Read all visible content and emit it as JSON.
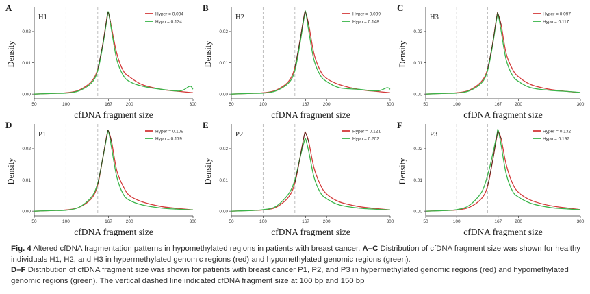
{
  "figure": {
    "caption": {
      "fig_label": "Fig. 4",
      "title": "Altered cfDNA fragmentation patterns in hypomethylated regions in patients with breast cancer.",
      "label_ac": "A–C",
      "text_ac": "Distribution of cfDNA fragment size was shown for healthy individuals H1, H2, and H3 in hypermethylated genomic regions (red) and hypomethylated genomic regions (green).",
      "label_df": "D–F",
      "text_df": "Distribution of cfDNA fragment size was shown for patients with breast cancer P1, P2, and P3 in hypermethylated genomic regions (red) and hypomethylated genomic regions (green). The vertical dashed line indicated cfDNA fragment size at 100 bp and 150 bp"
    }
  },
  "colors": {
    "hyper": "#d33a3a",
    "hypo": "#3ab54a",
    "overlap": "#3a2418",
    "axis": "#333333",
    "dashed": "#b8b8b8"
  },
  "chart_data": [
    {
      "type": "line",
      "panel": "A",
      "sample": "H1",
      "xlabel": "cfDNA fragment size",
      "ylabel": "Density",
      "xticks": [
        "50",
        "100",
        "167",
        "200",
        "300"
      ],
      "yticks": [
        "0.00",
        "0.01",
        "0.02"
      ],
      "xlim": [
        50,
        300
      ],
      "ylim": [
        -0.0015,
        0.027
      ],
      "vlines": [
        100,
        150
      ],
      "legend": [
        "Hyper = 0.094",
        "Hypo = 0.134"
      ],
      "legend_position": "top-right",
      "series": [
        {
          "name": "Hyper",
          "color": "#d33a3a",
          "points": [
            [
              50,
              0
            ],
            [
              80,
              0.0002
            ],
            [
              100,
              0.0004
            ],
            [
              120,
              0.0012
            ],
            [
              140,
              0.004
            ],
            [
              150,
              0.008
            ],
            [
              158,
              0.016
            ],
            [
              165,
              0.025
            ],
            [
              167,
              0.0258
            ],
            [
              170,
              0.023
            ],
            [
              180,
              0.013
            ],
            [
              190,
              0.0075
            ],
            [
              200,
              0.0055
            ],
            [
              220,
              0.003
            ],
            [
              250,
              0.0015
            ],
            [
              280,
              0.0008
            ],
            [
              300,
              0.0004
            ]
          ]
        },
        {
          "name": "Hypo",
          "color": "#3ab54a",
          "points": [
            [
              50,
              0
            ],
            [
              80,
              0.0002
            ],
            [
              100,
              0.0003
            ],
            [
              120,
              0.001
            ],
            [
              140,
              0.0035
            ],
            [
              150,
              0.0075
            ],
            [
              158,
              0.0155
            ],
            [
              165,
              0.0245
            ],
            [
              167,
              0.026
            ],
            [
              172,
              0.02
            ],
            [
              180,
              0.011
            ],
            [
              190,
              0.006
            ],
            [
              200,
              0.004
            ],
            [
              220,
              0.0025
            ],
            [
              250,
              0.0015
            ],
            [
              280,
              0.001
            ],
            [
              295,
              0.0025
            ],
            [
              300,
              0.0015
            ]
          ]
        }
      ]
    },
    {
      "type": "line",
      "panel": "B",
      "sample": "H2",
      "xlabel": "cfDNA fragment size",
      "ylabel": "Density",
      "xticks": [
        "50",
        "100",
        "167",
        "200",
        "300"
      ],
      "yticks": [
        "0.00",
        "0.01",
        "0.02"
      ],
      "xlim": [
        50,
        300
      ],
      "ylim": [
        -0.0015,
        0.027
      ],
      "vlines": [
        100,
        150
      ],
      "legend": [
        "Hyper = 0.099",
        "Hypo = 0.148"
      ],
      "legend_position": "top-right",
      "series": [
        {
          "name": "Hyper",
          "color": "#d33a3a",
          "points": [
            [
              50,
              0
            ],
            [
              80,
              0.0002
            ],
            [
              100,
              0.0004
            ],
            [
              120,
              0.0012
            ],
            [
              140,
              0.004
            ],
            [
              150,
              0.0085
            ],
            [
              158,
              0.017
            ],
            [
              165,
              0.0255
            ],
            [
              167,
              0.026
            ],
            [
              172,
              0.022
            ],
            [
              180,
              0.013
            ],
            [
              190,
              0.0075
            ],
            [
              200,
              0.005
            ],
            [
              220,
              0.003
            ],
            [
              250,
              0.0015
            ],
            [
              280,
              0.0008
            ],
            [
              300,
              0.0004
            ]
          ]
        },
        {
          "name": "Hypo",
          "color": "#3ab54a",
          "points": [
            [
              50,
              0
            ],
            [
              80,
              0.0002
            ],
            [
              100,
              0.0003
            ],
            [
              120,
              0.001
            ],
            [
              140,
              0.0035
            ],
            [
              150,
              0.0075
            ],
            [
              158,
              0.016
            ],
            [
              165,
              0.025
            ],
            [
              167,
              0.0262
            ],
            [
              172,
              0.02
            ],
            [
              180,
              0.011
            ],
            [
              190,
              0.006
            ],
            [
              200,
              0.004
            ],
            [
              220,
              0.002
            ],
            [
              250,
              0.0015
            ],
            [
              280,
              0.001
            ],
            [
              295,
              0.002
            ],
            [
              300,
              0.0015
            ]
          ]
        }
      ]
    },
    {
      "type": "line",
      "panel": "C",
      "sample": "H3",
      "xlabel": "cfDNA fragment size",
      "ylabel": "Density",
      "xticks": [
        "50",
        "100",
        "167",
        "200",
        "300"
      ],
      "yticks": [
        "0.00",
        "0.01",
        "0.02"
      ],
      "xlim": [
        50,
        300
      ],
      "ylim": [
        -0.0015,
        0.027
      ],
      "vlines": [
        100,
        150
      ],
      "legend": [
        "Hyper = 0.097",
        "Hypo = 0.117"
      ],
      "legend_position": "top-right",
      "series": [
        {
          "name": "Hyper",
          "color": "#d33a3a",
          "points": [
            [
              50,
              0
            ],
            [
              80,
              0.0002
            ],
            [
              100,
              0.0004
            ],
            [
              120,
              0.0012
            ],
            [
              140,
              0.004
            ],
            [
              150,
              0.008
            ],
            [
              158,
              0.016
            ],
            [
              165,
              0.025
            ],
            [
              167,
              0.0255
            ],
            [
              172,
              0.022
            ],
            [
              180,
              0.013
            ],
            [
              190,
              0.008
            ],
            [
              200,
              0.0055
            ],
            [
              220,
              0.003
            ],
            [
              250,
              0.0015
            ],
            [
              280,
              0.0008
            ],
            [
              300,
              0.0004
            ]
          ]
        },
        {
          "name": "Hypo",
          "color": "#3ab54a",
          "points": [
            [
              50,
              0
            ],
            [
              80,
              0.0002
            ],
            [
              100,
              0.0003
            ],
            [
              120,
              0.001
            ],
            [
              140,
              0.0035
            ],
            [
              150,
              0.0075
            ],
            [
              158,
              0.0155
            ],
            [
              165,
              0.0245
            ],
            [
              167,
              0.0255
            ],
            [
              172,
              0.02
            ],
            [
              180,
              0.011
            ],
            [
              190,
              0.006
            ],
            [
              200,
              0.004
            ],
            [
              220,
              0.002
            ],
            [
              250,
              0.0012
            ],
            [
              280,
              0.0008
            ],
            [
              300,
              0.0005
            ]
          ]
        }
      ]
    },
    {
      "type": "line",
      "panel": "D",
      "sample": "P1",
      "xlabel": "cfDNA fragment size",
      "ylabel": "Density",
      "xticks": [
        "50",
        "100",
        "167",
        "200",
        "300"
      ],
      "yticks": [
        "0.00",
        "0.01",
        "0.02"
      ],
      "xlim": [
        50,
        300
      ],
      "ylim": [
        -0.0015,
        0.027
      ],
      "vlines": [
        100,
        150
      ],
      "legend": [
        "Hyper = 0.109",
        "Hypo = 0.179"
      ],
      "legend_position": "top-right",
      "series": [
        {
          "name": "Hyper",
          "color": "#d33a3a",
          "points": [
            [
              50,
              0
            ],
            [
              80,
              0.0002
            ],
            [
              100,
              0.0004
            ],
            [
              120,
              0.0012
            ],
            [
              140,
              0.004
            ],
            [
              150,
              0.0085
            ],
            [
              158,
              0.017
            ],
            [
              165,
              0.025
            ],
            [
              167,
              0.0255
            ],
            [
              172,
              0.022
            ],
            [
              180,
              0.013
            ],
            [
              190,
              0.008
            ],
            [
              200,
              0.005
            ],
            [
              220,
              0.003
            ],
            [
              250,
              0.0015
            ],
            [
              280,
              0.0008
            ],
            [
              300,
              0.0004
            ]
          ]
        },
        {
          "name": "Hypo",
          "color": "#3ab54a",
          "points": [
            [
              50,
              0
            ],
            [
              80,
              0.0002
            ],
            [
              100,
              0.0003
            ],
            [
              120,
              0.0012
            ],
            [
              140,
              0.0045
            ],
            [
              150,
              0.009
            ],
            [
              158,
              0.017
            ],
            [
              165,
              0.0245
            ],
            [
              167,
              0.0255
            ],
            [
              172,
              0.02
            ],
            [
              180,
              0.011
            ],
            [
              190,
              0.0055
            ],
            [
              200,
              0.0035
            ],
            [
              220,
              0.002
            ],
            [
              250,
              0.001
            ],
            [
              280,
              0.0006
            ],
            [
              300,
              0.0004
            ]
          ]
        }
      ]
    },
    {
      "type": "line",
      "panel": "E",
      "sample": "P2",
      "xlabel": "cfDNA fragment size",
      "ylabel": "Density",
      "xticks": [
        "50",
        "100",
        "167",
        "200",
        "300"
      ],
      "yticks": [
        "0.00",
        "0.01",
        "0.02"
      ],
      "xlim": [
        50,
        300
      ],
      "ylim": [
        -0.0015,
        0.027
      ],
      "vlines": [
        100,
        150
      ],
      "legend": [
        "Hyper = 0.121",
        "Hypo = 0.202"
      ],
      "legend_position": "top-right",
      "series": [
        {
          "name": "Hyper",
          "color": "#d33a3a",
          "points": [
            [
              50,
              0
            ],
            [
              80,
              0.0002
            ],
            [
              100,
              0.0004
            ],
            [
              120,
              0.0012
            ],
            [
              140,
              0.0045
            ],
            [
              150,
              0.009
            ],
            [
              158,
              0.017
            ],
            [
              165,
              0.0245
            ],
            [
              167,
              0.025
            ],
            [
              172,
              0.022
            ],
            [
              180,
              0.014
            ],
            [
              190,
              0.0085
            ],
            [
              200,
              0.0055
            ],
            [
              220,
              0.003
            ],
            [
              250,
              0.0015
            ],
            [
              280,
              0.0008
            ],
            [
              300,
              0.0004
            ]
          ]
        },
        {
          "name": "Hypo",
          "color": "#3ab54a",
          "points": [
            [
              50,
              0
            ],
            [
              80,
              0.0002
            ],
            [
              100,
              0.0005
            ],
            [
              120,
              0.0015
            ],
            [
              140,
              0.0055
            ],
            [
              150,
              0.01
            ],
            [
              158,
              0.017
            ],
            [
              165,
              0.0225
            ],
            [
              167,
              0.023
            ],
            [
              172,
              0.019
            ],
            [
              180,
              0.011
            ],
            [
              190,
              0.006
            ],
            [
              200,
              0.004
            ],
            [
              220,
              0.002
            ],
            [
              250,
              0.001
            ],
            [
              280,
              0.0006
            ],
            [
              300,
              0.0004
            ]
          ]
        }
      ]
    },
    {
      "type": "line",
      "panel": "F",
      "sample": "P3",
      "xlabel": "cfDNA fragment size",
      "ylabel": "Density",
      "xticks": [
        "50",
        "100",
        "167",
        "200",
        "300"
      ],
      "yticks": [
        "0.00",
        "0.01",
        "0.02"
      ],
      "xlim": [
        50,
        300
      ],
      "ylim": [
        -0.0015,
        0.027
      ],
      "vlines": [
        100,
        150
      ],
      "legend": [
        "Hyper = 0.132",
        "Hypo = 0.197"
      ],
      "legend_position": "top-right",
      "series": [
        {
          "name": "Hyper",
          "color": "#d33a3a",
          "points": [
            [
              50,
              0
            ],
            [
              80,
              0.0002
            ],
            [
              100,
              0.0004
            ],
            [
              120,
              0.0012
            ],
            [
              140,
              0.004
            ],
            [
              150,
              0.008
            ],
            [
              158,
              0.016
            ],
            [
              165,
              0.024
            ],
            [
              167,
              0.0255
            ],
            [
              172,
              0.023
            ],
            [
              180,
              0.015
            ],
            [
              190,
              0.009
            ],
            [
              200,
              0.006
            ],
            [
              220,
              0.0035
            ],
            [
              250,
              0.0018
            ],
            [
              280,
              0.001
            ],
            [
              300,
              0.0005
            ]
          ]
        },
        {
          "name": "Hypo",
          "color": "#3ab54a",
          "points": [
            [
              50,
              0
            ],
            [
              80,
              0.0002
            ],
            [
              100,
              0.0005
            ],
            [
              120,
              0.0018
            ],
            [
              140,
              0.006
            ],
            [
              150,
              0.0115
            ],
            [
              158,
              0.018
            ],
            [
              165,
              0.0245
            ],
            [
              167,
              0.026
            ],
            [
              172,
              0.021
            ],
            [
              180,
              0.012
            ],
            [
              190,
              0.0065
            ],
            [
              200,
              0.0045
            ],
            [
              220,
              0.0025
            ],
            [
              250,
              0.0012
            ],
            [
              280,
              0.0007
            ],
            [
              300,
              0.0005
            ]
          ]
        }
      ]
    }
  ]
}
